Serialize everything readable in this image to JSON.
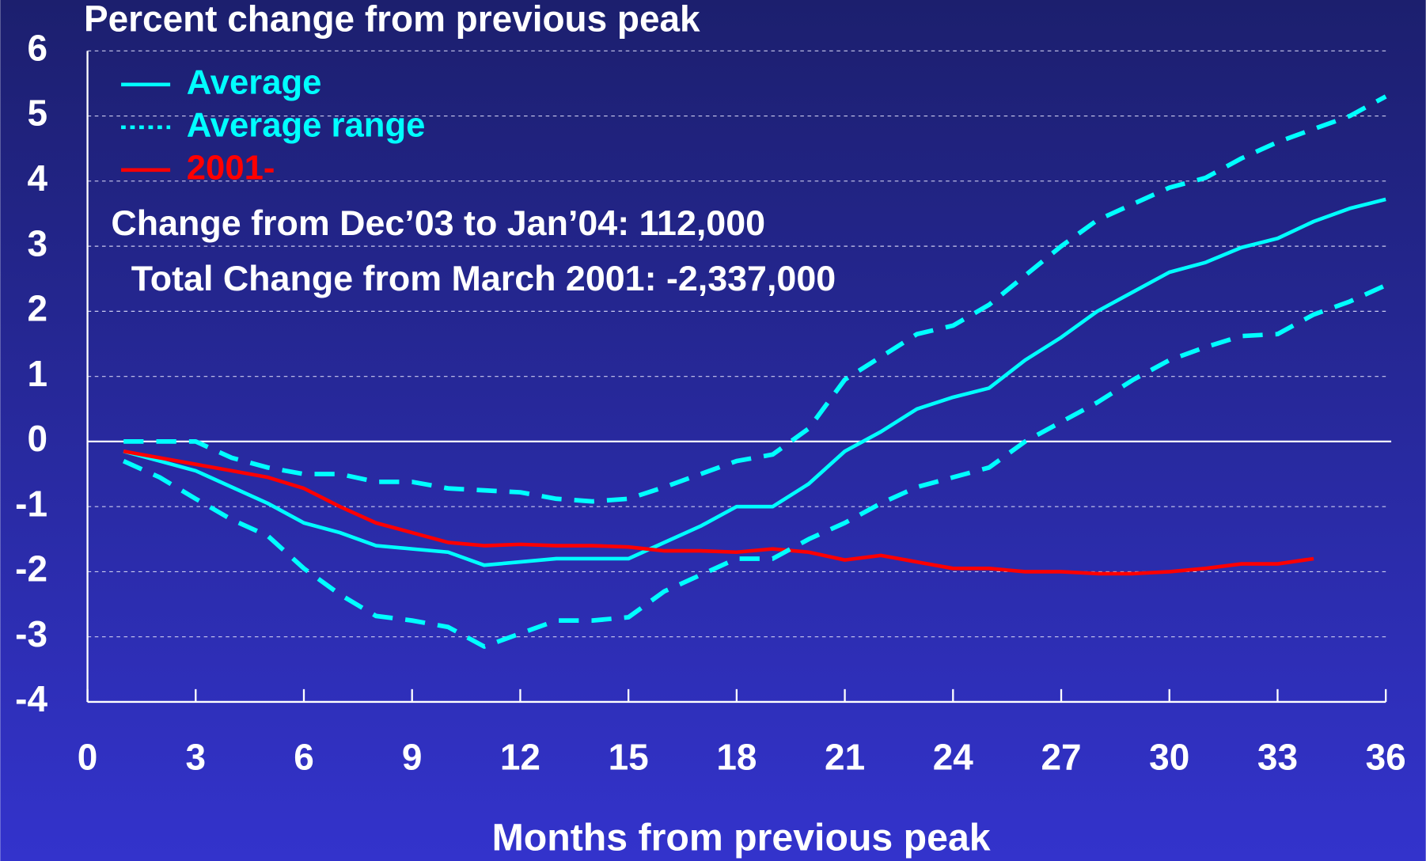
{
  "chart_data": {
    "type": "line",
    "title": "Percent change from previous peak",
    "xlabel": "Months from previous peak",
    "annotations": [
      "Change from Dec’03 to Jan’04: 112,000",
      "Total Change from March 2001: -2,337,000"
    ],
    "x": [
      1,
      2,
      3,
      4,
      5,
      6,
      7,
      8,
      9,
      10,
      11,
      12,
      13,
      14,
      15,
      16,
      17,
      18,
      19,
      20,
      21,
      22,
      23,
      24,
      25,
      26,
      27,
      28,
      29,
      30,
      31,
      32,
      33,
      34,
      35,
      36
    ],
    "series": [
      {
        "name": "Average",
        "color": "#00ffff",
        "style": "solid",
        "values": [
          -0.15,
          -0.3,
          -0.45,
          -0.7,
          -0.95,
          -1.25,
          -1.4,
          -1.6,
          -1.65,
          -1.7,
          -1.9,
          -1.85,
          -1.8,
          -1.8,
          -1.8,
          -1.55,
          -1.3,
          -1.0,
          -1.0,
          -0.65,
          -0.15,
          0.15,
          0.5,
          0.68,
          0.82,
          1.25,
          1.6,
          2.0,
          2.3,
          2.6,
          2.75,
          2.98,
          3.12,
          3.38,
          3.58,
          3.72
        ]
      },
      {
        "name": "Average range",
        "color": "#00ffff",
        "style": "dashed",
        "values": [
          0.0,
          0.0,
          0.0,
          -0.25,
          -0.4,
          -0.5,
          -0.5,
          -0.62,
          -0.62,
          -0.72,
          -0.75,
          -0.78,
          -0.88,
          -0.92,
          -0.88,
          -0.7,
          -0.5,
          -0.3,
          -0.2,
          0.2,
          0.95,
          1.3,
          1.65,
          1.78,
          2.1,
          2.55,
          3.0,
          3.4,
          3.65,
          3.9,
          4.05,
          4.35,
          4.6,
          4.8,
          5.0,
          5.3
        ]
      },
      {
        "name": "2001-",
        "color": "#ff0000",
        "style": "solid",
        "values": [
          -0.15,
          -0.25,
          -0.35,
          -0.45,
          -0.55,
          -0.72,
          -1.0,
          -1.25,
          -1.4,
          -1.55,
          -1.6,
          -1.58,
          -1.6,
          -1.6,
          -1.62,
          -1.68,
          -1.68,
          -1.7,
          -1.65,
          -1.7,
          -1.82,
          -1.75,
          -1.85,
          -1.95,
          -1.95,
          -2.0,
          -2.0,
          -2.03,
          -2.03,
          -2.0,
          -1.95,
          -1.88,
          -1.88,
          -1.8,
          null,
          null
        ]
      },
      {
        "color": "#00ffff",
        "style": "dashed",
        "values": [
          -0.3,
          -0.55,
          -0.88,
          -1.2,
          -1.45,
          -1.95,
          -2.35,
          -2.68,
          -2.75,
          -2.85,
          -3.15,
          -2.95,
          -2.75,
          -2.75,
          -2.7,
          -2.3,
          -2.05,
          -1.8,
          -1.8,
          -1.5,
          -1.25,
          -0.95,
          -0.7,
          -0.55,
          -0.4,
          0.0,
          0.3,
          0.6,
          0.95,
          1.25,
          1.45,
          1.62,
          1.65,
          1.95,
          2.15,
          2.4
        ]
      }
    ],
    "xlim": [
      0,
      36
    ],
    "xticks": [
      0,
      3,
      6,
      9,
      12,
      15,
      18,
      21,
      24,
      27,
      30,
      33,
      36
    ],
    "ylim": [
      -4,
      6
    ],
    "yticks": [
      -4,
      -3,
      -2,
      -1,
      0,
      1,
      2,
      3,
      4,
      5,
      6
    ],
    "grid": true,
    "legend": "upper left"
  }
}
